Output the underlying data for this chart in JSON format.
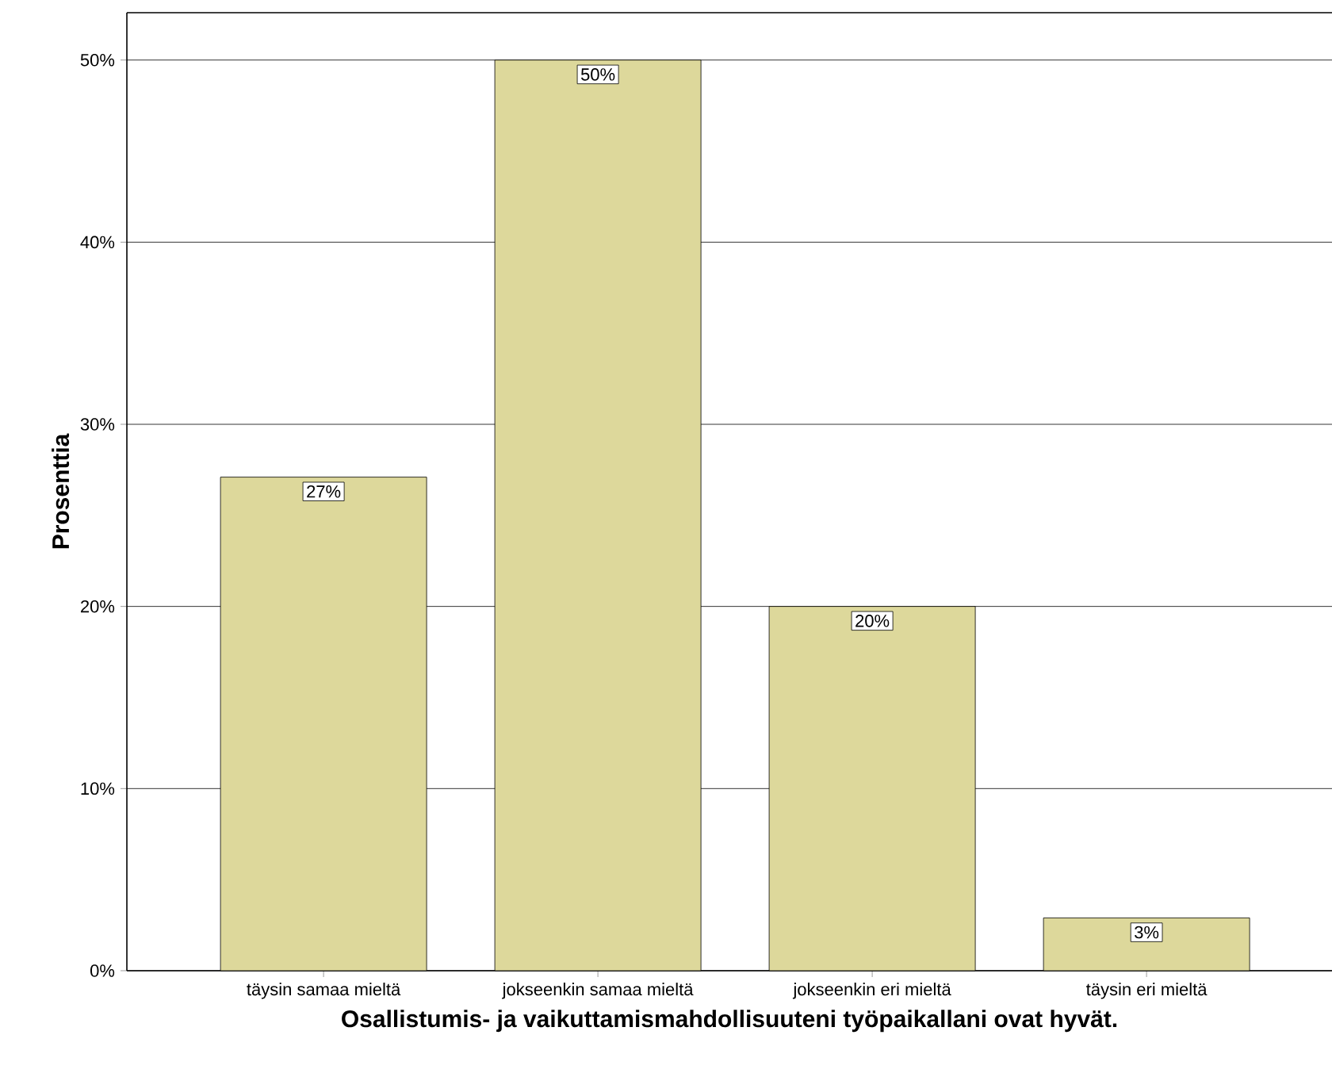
{
  "chart_data": {
    "type": "bar",
    "xlabel": "Osallistumis- ja vaikuttamismahdollisuuteni työpaikallani ovat hyvät.",
    "ylabel": "Prosenttia",
    "categories": [
      "täysin samaa mieltä",
      "jokseenkin samaa mieltä",
      "jokseenkin eri mieltä",
      "täysin eri mieltä"
    ],
    "values": [
      27.1,
      50,
      20,
      2.9
    ],
    "value_labels": [
      "27%",
      "50%",
      "20%",
      "3%"
    ],
    "color": "#ddd89b",
    "ylim": [
      0,
      52.6
    ],
    "yticks": [
      {
        "value": 0,
        "label": "0%"
      },
      {
        "value": 10,
        "label": "10%"
      },
      {
        "value": 20,
        "label": "20%"
      },
      {
        "value": 30,
        "label": "30%"
      },
      {
        "value": 40,
        "label": "40%"
      },
      {
        "value": 50,
        "label": "50%"
      }
    ],
    "grid": "y"
  }
}
